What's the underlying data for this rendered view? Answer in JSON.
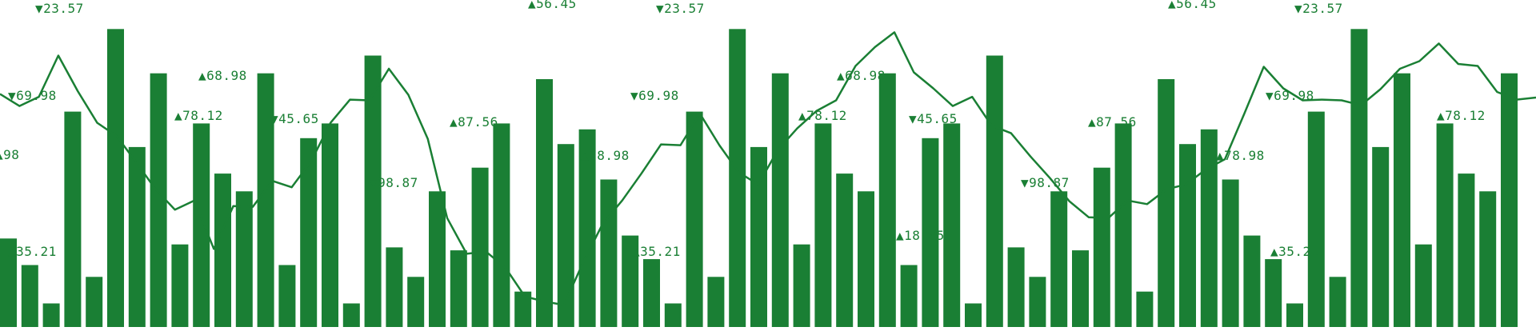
{
  "chart_data": {
    "type": "bar",
    "style": "repeating ticker banner: bars with an overlaid price line and up/down price labels",
    "color": "#1a7f34",
    "background": "#ffffff",
    "grid": false,
    "legend": "none",
    "ylim": [
      0,
      100
    ],
    "bar_values": [
      30,
      21,
      8,
      73,
      17,
      101,
      61,
      86,
      28,
      69,
      52,
      46,
      86,
      21,
      64,
      69,
      8,
      92,
      27,
      17,
      46,
      26,
      54,
      69,
      12,
      84,
      62,
      67,
      50,
      31,
      23,
      8,
      73,
      17,
      101,
      61,
      86,
      28,
      69,
      52,
      46,
      86,
      21,
      64,
      69,
      8,
      92,
      27,
      17,
      46,
      26,
      54,
      69,
      12,
      84,
      62,
      67,
      50,
      31,
      23,
      8,
      73,
      17,
      101,
      61,
      86,
      28,
      69,
      52,
      46,
      86
    ],
    "line_values": [
      82,
      80,
      81,
      98,
      83,
      74,
      67,
      60,
      48,
      43,
      44,
      29,
      42,
      44,
      51,
      51,
      58,
      74,
      80,
      82,
      91,
      84,
      66,
      40,
      25,
      28,
      20,
      12,
      8,
      9,
      22,
      38,
      44,
      56,
      64,
      66,
      75,
      66,
      54,
      52,
      62,
      72,
      76,
      82,
      92,
      101,
      104,
      92,
      84,
      80,
      81,
      73,
      68,
      62,
      52,
      46,
      38,
      40,
      44,
      45,
      48,
      52,
      55,
      61,
      75,
      94,
      84,
      82,
      80,
      82,
      78,
      86,
      91,
      96,
      100,
      95,
      92,
      85,
      80,
      83
    ],
    "price_labels": [
      {
        "text": "23.57",
        "dir": "down"
      },
      {
        "text": "69.98",
        "dir": "down"
      },
      {
        "text": "68.98",
        "dir": "up"
      },
      {
        "text": "78.12",
        "dir": "up"
      },
      {
        "text": "45.65",
        "dir": "down"
      },
      {
        "text": "35.21",
        "dir": "up"
      },
      {
        "text": "87.56",
        "dir": "up"
      },
      {
        "text": "98.87",
        "dir": "down"
      },
      {
        "text": "56.45",
        "dir": "up"
      },
      {
        "text": "78.98",
        "dir": "up"
      },
      {
        "text": "18.05",
        "dir": "up"
      },
      {
        "text": "69.98",
        "dir": "down"
      },
      {
        "text": "98",
        "dir": "up"
      }
    ],
    "symbols": {
      "up": "▲",
      "down": "▼"
    }
  }
}
